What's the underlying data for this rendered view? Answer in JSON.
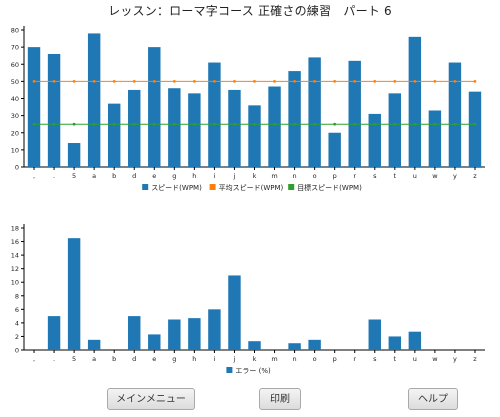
{
  "window": {
    "title": "レッスン：ローマ字コース 正確さの練習　パート 6"
  },
  "buttons": {
    "main_menu": "メインメニュー",
    "print": "印刷",
    "help": "ヘルプ"
  },
  "colors": {
    "speed": "#1f77b4",
    "avg": "#ff7f0e",
    "target": "#2ca02c",
    "error": "#1f77b4"
  },
  "chart_data": [
    {
      "type": "bar",
      "categories": [
        ",",
        ".",
        "5",
        "a",
        "b",
        "d",
        "e",
        "g",
        "h",
        "i",
        "j",
        "k",
        "m",
        "n",
        "o",
        "p",
        "r",
        "s",
        "t",
        "u",
        "w",
        "y",
        "z"
      ],
      "ylim": [
        0,
        80
      ],
      "yticks": [
        0,
        10,
        20,
        30,
        40,
        50,
        60,
        70,
        80
      ],
      "series": [
        {
          "name": "スピード(WPM)",
          "kind": "bar",
          "values": [
            70,
            66,
            14,
            78,
            37,
            45,
            70,
            46,
            43,
            61,
            45,
            36,
            47,
            56,
            64,
            20,
            62,
            31,
            43,
            76,
            33,
            61,
            44
          ]
        },
        {
          "name": "平均スピード(WPM)",
          "kind": "line",
          "values": [
            50,
            50,
            50,
            50,
            50,
            50,
            50,
            50,
            50,
            50,
            50,
            50,
            50,
            50,
            50,
            50,
            50,
            50,
            50,
            50,
            50,
            50,
            50
          ]
        },
        {
          "name": "目標スピード(WPM)",
          "kind": "line",
          "values": [
            25,
            25,
            25,
            25,
            25,
            25,
            25,
            25,
            25,
            25,
            25,
            25,
            25,
            25,
            25,
            25,
            25,
            25,
            25,
            25,
            25,
            25,
            25
          ]
        }
      ],
      "grid": false,
      "legend": "bottom"
    },
    {
      "type": "bar",
      "categories": [
        ",",
        ".",
        "5",
        "a",
        "b",
        "d",
        "e",
        "g",
        "h",
        "i",
        "j",
        "k",
        "m",
        "n",
        "o",
        "p",
        "r",
        "s",
        "t",
        "u",
        "w",
        "y",
        "z"
      ],
      "ylim": [
        0,
        18
      ],
      "yticks": [
        0,
        2,
        4,
        6,
        8,
        10,
        12,
        14,
        16,
        18
      ],
      "series": [
        {
          "name": "エラー (%)",
          "kind": "bar",
          "values": [
            0,
            5,
            16.5,
            1.5,
            0,
            5,
            2.3,
            4.5,
            4.7,
            6,
            11,
            1.3,
            0,
            1,
            1.5,
            0,
            0,
            4.5,
            2,
            2.7,
            0,
            0,
            0
          ]
        }
      ],
      "grid": false,
      "legend": "bottom"
    }
  ]
}
